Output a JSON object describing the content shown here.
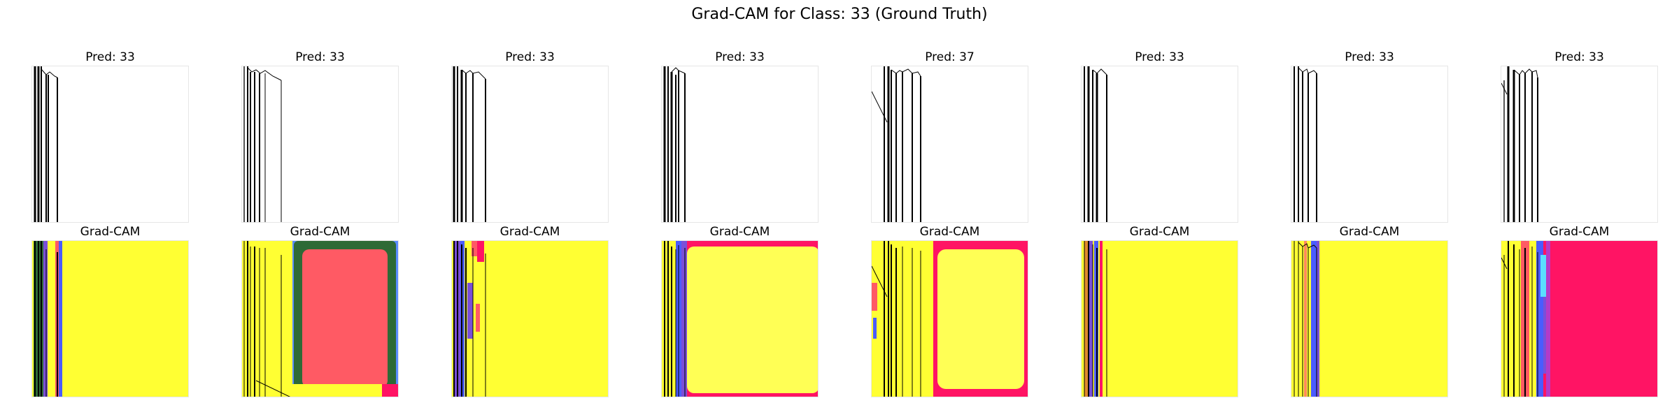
{
  "figure": {
    "title": "Grad-CAM for Class: 33 (Ground Truth)"
  },
  "columns": [
    {
      "pred_label": "Pred: 33",
      "cam_label": "Grad-CAM"
    },
    {
      "pred_label": "Pred: 33",
      "cam_label": "Grad-CAM"
    },
    {
      "pred_label": "Pred: 33",
      "cam_label": "Grad-CAM"
    },
    {
      "pred_label": "Pred: 33",
      "cam_label": "Grad-CAM"
    },
    {
      "pred_label": "Pred: 37",
      "cam_label": "Grad-CAM"
    },
    {
      "pred_label": "Pred: 33",
      "cam_label": "Grad-CAM"
    },
    {
      "pred_label": "Pred: 33",
      "cam_label": "Grad-CAM"
    },
    {
      "pred_label": "Pred: 33",
      "cam_label": "Grad-CAM"
    }
  ],
  "colors": {
    "heatmap_yellow": "#ffff33",
    "heatmap_red": "#ff5a64",
    "heatmap_magenta": "#ff1464",
    "heatmap_green": "#2e6a36",
    "heatmap_blue": "#4a5cff",
    "stroke": "#000000"
  }
}
